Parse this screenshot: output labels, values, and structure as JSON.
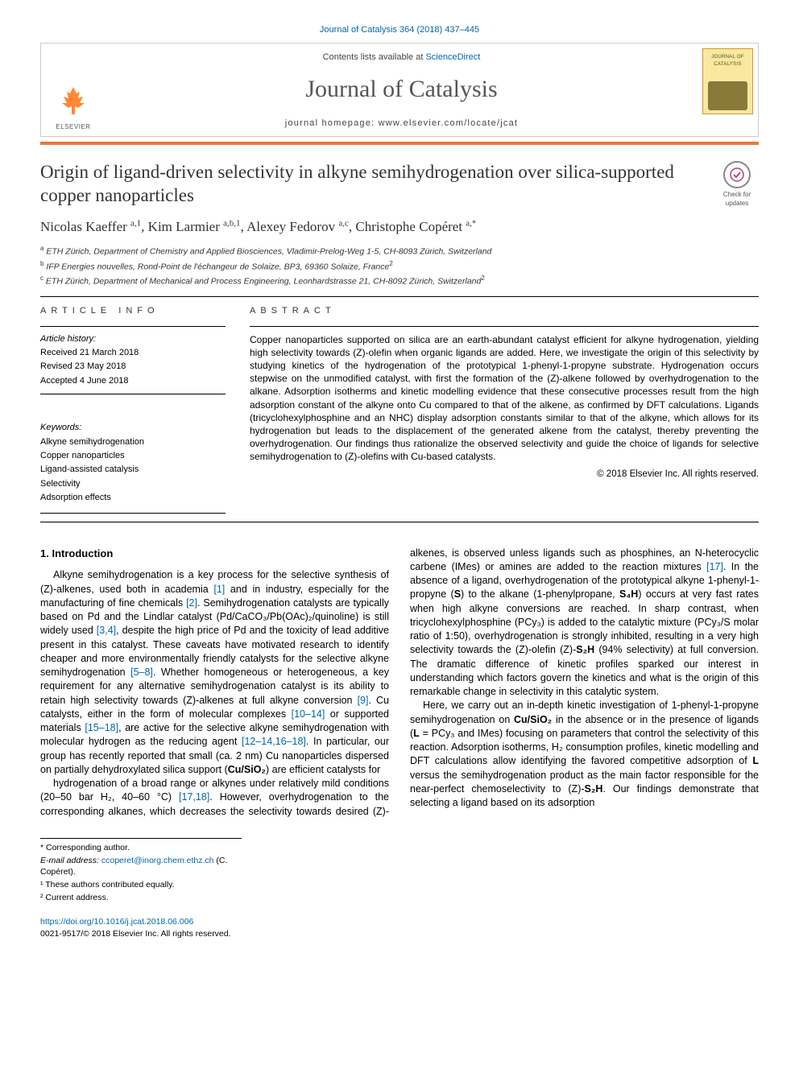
{
  "citation": "Journal of Catalysis 364 (2018) 437–445",
  "header": {
    "contents_prefix": "Contents lists available at ",
    "contents_link": "ScienceDirect",
    "journal_name": "Journal of Catalysis",
    "homepage_prefix": "journal homepage: ",
    "homepage_url": "www.elsevier.com/locate/jcat",
    "publisher": "ELSEVIER",
    "cover_label": "JOURNAL OF CATALYSIS"
  },
  "colors": {
    "accent_bar": "#ee7733",
    "link": "#0066aa",
    "text": "#333333",
    "border": "#cccccc",
    "cover_bg": "#f9e8a0"
  },
  "updates_badge": "Check for updates",
  "title": "Origin of ligand-driven selectivity in alkyne semihydrogenation over silica-supported copper nanoparticles",
  "authors_html": "Nicolas Kaeffer <sup>a,1</sup>, Kim Larmier <sup>a,b,1</sup>, Alexey Fedorov <sup>a,c</sup>, Christophe Copéret <sup>a,*</sup>",
  "affiliations": [
    "ETH Zürich, Department of Chemistry and Applied Biosciences, Vladimir-Prelog-Weg 1-5, CH-8093 Zürich, Switzerland",
    "IFP Energies nouvelles, Rond-Point de l'échangeur de Solaize, BP3, 69360 Solaize, France",
    "ETH Zürich, Department of Mechanical and Process Engineering, Leonhardstrasse 21, CH-8092 Zürich, Switzerland"
  ],
  "affil_sup": [
    "a",
    "b",
    "c"
  ],
  "affil_note_sup": [
    "",
    "2",
    "2"
  ],
  "article_info": {
    "heading": "ARTICLE INFO",
    "history_label": "Article history:",
    "received": "Received 21 March 2018",
    "revised": "Revised 23 May 2018",
    "accepted": "Accepted 4 June 2018",
    "keywords_label": "Keywords:",
    "keywords": [
      "Alkyne semihydrogenation",
      "Copper nanoparticles",
      "Ligand-assisted catalysis",
      "Selectivity",
      "Adsorption effects"
    ]
  },
  "abstract": {
    "heading": "ABSTRACT",
    "text": "Copper nanoparticles supported on silica are an earth-abundant catalyst efficient for alkyne hydrogenation, yielding high selectivity towards (Z)-olefin when organic ligands are added. Here, we investigate the origin of this selectivity by studying kinetics of the hydrogenation of the prototypical 1-phenyl-1-propyne substrate. Hydrogenation occurs stepwise on the unmodified catalyst, with first the formation of the (Z)-alkene followed by overhydrogenation to the alkane. Adsorption isotherms and kinetic modelling evidence that these consecutive processes result from the high adsorption constant of the alkyne onto Cu compared to that of the alkene, as confirmed by DFT calculations. Ligands (tricyclohexylphosphine and an NHC) display adsorption constants similar to that of the alkyne, which allows for its hydrogenation but leads to the displacement of the generated alkene from the catalyst, thereby preventing the overhydrogenation. Our findings thus rationalize the observed selectivity and guide the choice of ligands for selective semihydrogenation to (Z)-olefins with Cu-based catalysts.",
    "copyright": "© 2018 Elsevier Inc. All rights reserved."
  },
  "section1": {
    "heading": "1. Introduction",
    "para1": "Alkyne semihydrogenation is a key process for the selective synthesis of (Z)-alkenes, used both in academia [1] and in industry, especially for the manufacturing of fine chemicals [2]. Semihydrogenation catalysts are typically based on Pd and the Lindlar catalyst (Pd/CaCO₃/Pb(OAc)₂/quinoline) is still widely used [3,4], despite the high price of Pd and the toxicity of lead additive present in this catalyst. These caveats have motivated research to identify cheaper and more environmentally friendly catalysts for the selective alkyne semihydrogenation [5–8]. Whether homogeneous or heterogeneous, a key requirement for any alternative semihydrogenation catalyst is its ability to retain high selectivity towards (Z)-alkenes at full alkyne conversion [9]. Cu catalysts, either in the form of molecular complexes [10–14] or supported materials [15–18], are active for the selective alkyne semihydrogenation with molecular hydrogen as the reducing agent [12–14,16–18]. In particular, our group has recently reported that small (ca. 2 nm) Cu nanoparticles dispersed on partially dehydroxylated silica support (Cu/SiO₂) are efficient catalysts for",
    "para2": "hydrogenation of a broad range or alkynes under relatively mild conditions (20–50 bar H₂, 40–60 °C) [17,18]. However, overhydrogenation to the corresponding alkanes, which decreases the selectivity towards desired (Z)-alkenes, is observed unless ligands such as phosphines, an N-heterocyclic carbene (IMes) or amines are added to the reaction mixtures [17]. In the absence of a ligand, overhydrogenation of the prototypical alkyne 1-phenyl-1-propyne (S) to the alkane (1-phenylpropane, S₄H) occurs at very fast rates when high alkyne conversions are reached. In sharp contrast, when tricyclohexylphosphine (PCy₃) is added to the catalytic mixture (PCy₃/S molar ratio of 1:50), overhydrogenation is strongly inhibited, resulting in a very high selectivity towards the (Z)-olefin (Z)-S₂H (94% selectivity) at full conversion. The dramatic difference of kinetic profiles sparked our interest in understanding which factors govern the kinetics and what is the origin of this remarkable change in selectivity in this catalytic system.",
    "para3": "Here, we carry out an in-depth kinetic investigation of 1-phenyl-1-propyne semihydrogenation on Cu/SiO₂ in the absence or in the presence of ligands (L = PCy₃ and IMes) focusing on parameters that control the selectivity of this reaction. Adsorption isotherms, H₂ consumption profiles, kinetic modelling and DFT calculations allow identifying the favored competitive adsorption of L versus the semihydrogenation product as the main factor responsible for the near-perfect chemoselectivity to (Z)-S₂H. Our findings demonstrate that selecting a ligand based on its adsorption"
  },
  "footnotes": {
    "corr": "* Corresponding author.",
    "email_label": "E-mail address: ",
    "email": "ccoperet@inorg.chem.ethz.ch",
    "email_suffix": " (C. Copéret).",
    "note1": "¹ These authors contributed equally.",
    "note2": "² Current address."
  },
  "bottom": {
    "doi": "https://doi.org/10.1016/j.jcat.2018.06.006",
    "issn_line": "0021-9517/© 2018 Elsevier Inc. All rights reserved."
  }
}
